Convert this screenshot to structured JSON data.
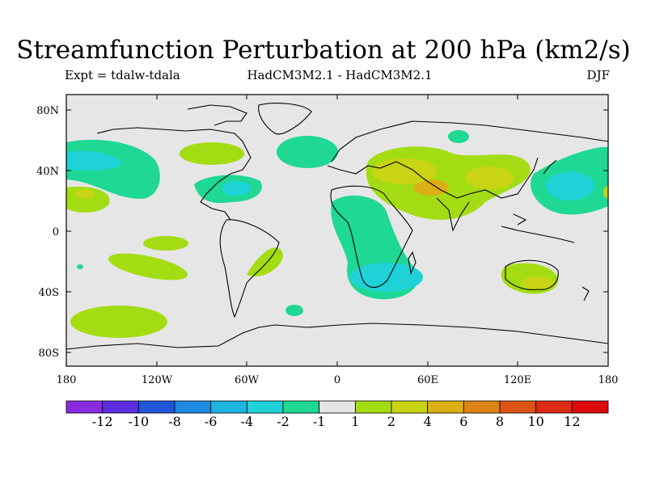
{
  "title": "Streamfunction Perturbation at 200 hPa (km2/s)",
  "subtitle_left": "Expt = tdalw-tdala",
  "subtitle_center": "HadCM3M2.1 - HadCM3M2.1",
  "subtitle_right": "DJF",
  "axes": {
    "lat_ticks": [
      "80N",
      "40N",
      "0",
      "40S",
      "80S"
    ],
    "lon_ticks": [
      "180",
      "120W",
      "60W",
      "0",
      "60E",
      "120E",
      "180"
    ]
  },
  "colorbar": {
    "labels": [
      "-12",
      "-10",
      "-8",
      "-6",
      "-4",
      "-2",
      "-1",
      "1",
      "2",
      "4",
      "6",
      "8",
      "10",
      "12"
    ],
    "colors": [
      "#8a2be2",
      "#5a2ee0",
      "#2255d8",
      "#1e8ae0",
      "#1eb4e0",
      "#1ed2d8",
      "#1ed894",
      "#e4e4e4",
      "#a4dc14",
      "#c8d414",
      "#dcb014",
      "#dc8414",
      "#dc5414",
      "#dc2a14",
      "#dc0a0a"
    ]
  },
  "anomalies": [
    {
      "region": "north-pacific",
      "level": "-2"
    },
    {
      "region": "north-atlantic",
      "level": "-2"
    },
    {
      "region": "caribbean",
      "level": "-2"
    },
    {
      "region": "africa",
      "level": "-2"
    },
    {
      "region": "south-africa",
      "level": "-4"
    },
    {
      "region": "west-pacific",
      "level": "-4"
    },
    {
      "region": "south-pacific",
      "level": "2"
    },
    {
      "region": "asia",
      "level": "2"
    },
    {
      "region": "middle-east",
      "level": "4"
    },
    {
      "region": "australia",
      "level": "2"
    },
    {
      "region": "southern-ocean",
      "level": "2"
    }
  ]
}
